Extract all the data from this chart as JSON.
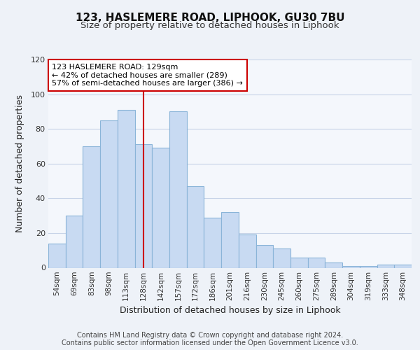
{
  "title": "123, HASLEMERE ROAD, LIPHOOK, GU30 7BU",
  "subtitle": "Size of property relative to detached houses in Liphook",
  "xlabel": "Distribution of detached houses by size in Liphook",
  "ylabel": "Number of detached properties",
  "footer_lines": [
    "Contains HM Land Registry data © Crown copyright and database right 2024.",
    "Contains public sector information licensed under the Open Government Licence v3.0."
  ],
  "bar_labels": [
    "54sqm",
    "69sqm",
    "83sqm",
    "98sqm",
    "113sqm",
    "128sqm",
    "142sqm",
    "157sqm",
    "172sqm",
    "186sqm",
    "201sqm",
    "216sqm",
    "230sqm",
    "245sqm",
    "260sqm",
    "275sqm",
    "289sqm",
    "304sqm",
    "319sqm",
    "333sqm",
    "348sqm"
  ],
  "bar_values": [
    14,
    30,
    70,
    85,
    91,
    71,
    69,
    90,
    47,
    29,
    32,
    19,
    13,
    11,
    6,
    6,
    3,
    1,
    1,
    2,
    2
  ],
  "bar_color": "#c8daf2",
  "bar_edge_color": "#8ab4d8",
  "vline_x_index": 5,
  "vline_color": "#cc0000",
  "annotation_box_text": "123 HASLEMERE ROAD: 129sqm\n← 42% of detached houses are smaller (289)\n57% of semi-detached houses are larger (386) →",
  "ylim": [
    0,
    120
  ],
  "yticks": [
    0,
    20,
    40,
    60,
    80,
    100,
    120
  ],
  "background_color": "#eef2f8",
  "plot_background_color": "#f4f7fc",
  "grid_color": "#c8d4e8",
  "title_fontsize": 11,
  "subtitle_fontsize": 9.5,
  "axis_label_fontsize": 9,
  "tick_fontsize": 7.5,
  "footer_fontsize": 7
}
